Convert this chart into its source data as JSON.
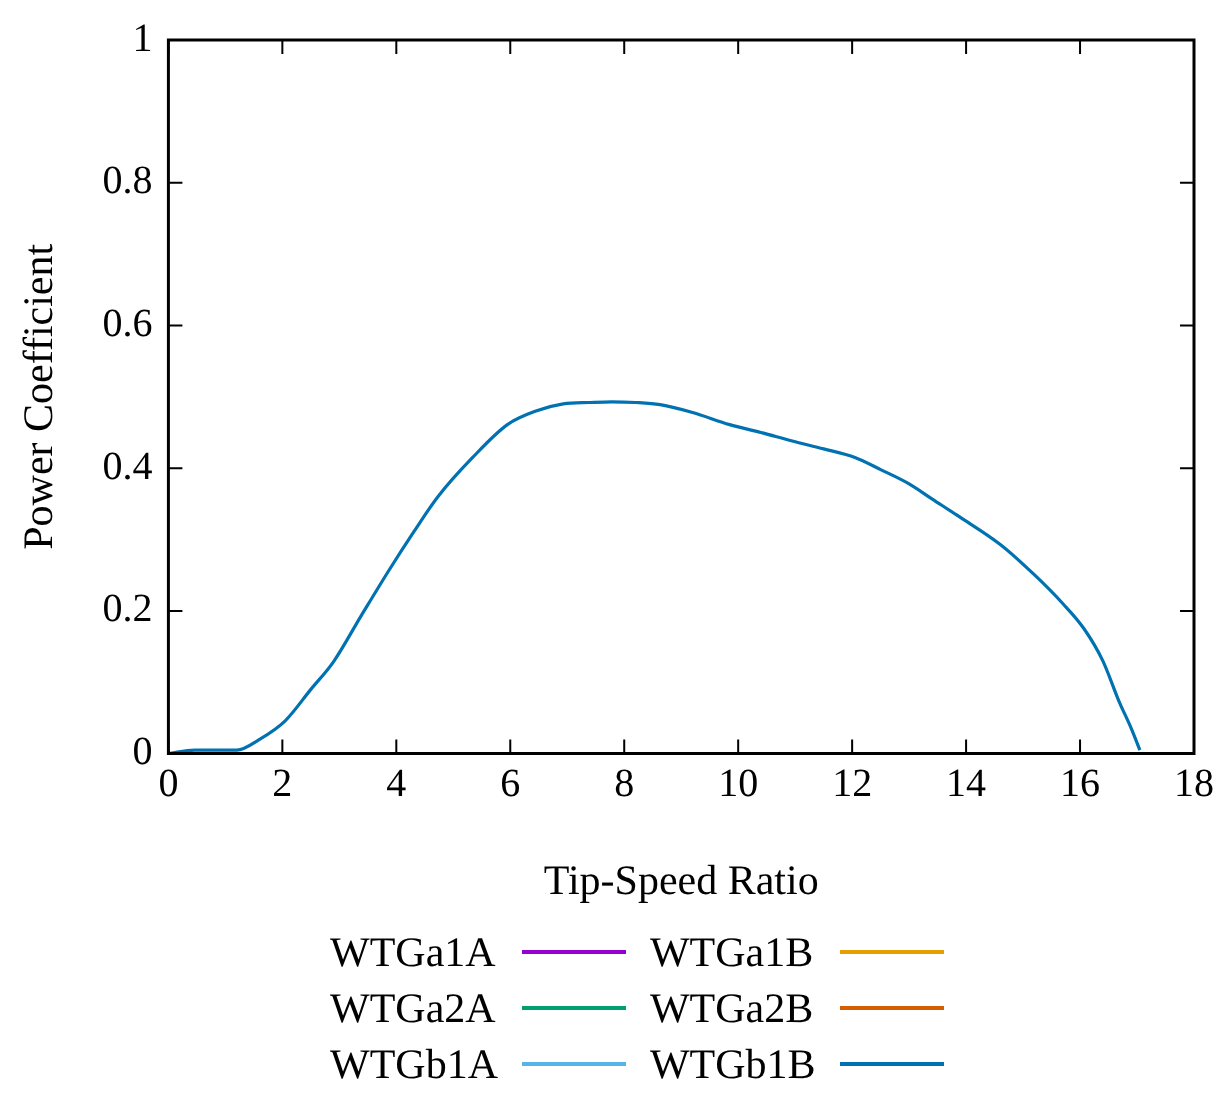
{
  "chart_data": {
    "type": "line",
    "xlabel": "Tip-Speed Ratio",
    "ylabel": "Power Coefficient",
    "x": [
      0,
      0.46,
      1.2,
      1.6,
      2.05,
      2.5,
      2.9,
      3.39,
      3.88,
      4.3,
      4.73,
      5.34,
      5.95,
      6.45,
      6.93,
      7.4,
      7.78,
      8.2,
      8.63,
      9.2,
      9.85,
      10.4,
      10.95,
      11.5,
      12.05,
      12.5,
      13.0,
      13.4,
      13.88,
      14.6,
      15.22,
      15.7,
      16.07,
      16.4,
      16.68,
      16.9,
      17.05
    ],
    "series": [
      {
        "name": "WTGa1A",
        "color": "#9400d3",
        "values": [
          null,
          null,
          null,
          null,
          null,
          null,
          null,
          null,
          null,
          null,
          null,
          null,
          null,
          null,
          null,
          null,
          null,
          null,
          null,
          null,
          null,
          null,
          null,
          null,
          null,
          null,
          null,
          null,
          null,
          null,
          null,
          null,
          null,
          null,
          null,
          null,
          null
        ]
      },
      {
        "name": "WTGa1B",
        "color": "#e69f00",
        "values": [
          null,
          null,
          null,
          null,
          null,
          null,
          null,
          null,
          null,
          null,
          null,
          null,
          null,
          null,
          null,
          null,
          null,
          null,
          null,
          null,
          null,
          null,
          null,
          null,
          null,
          null,
          null,
          null,
          null,
          null,
          null,
          null,
          null,
          null,
          null,
          null,
          null
        ]
      },
      {
        "name": "WTGa2A",
        "color": "#009e73",
        "values": [
          null,
          null,
          null,
          null,
          null,
          null,
          null,
          null,
          null,
          null,
          null,
          null,
          null,
          null,
          null,
          null,
          null,
          null,
          null,
          null,
          null,
          null,
          null,
          null,
          null,
          null,
          null,
          null,
          null,
          null,
          null,
          null,
          null,
          null,
          null,
          null,
          null
        ]
      },
      {
        "name": "WTGa2B",
        "color": "#d55e00",
        "values": [
          null,
          null,
          null,
          null,
          null,
          null,
          null,
          null,
          null,
          null,
          null,
          null,
          null,
          null,
          null,
          null,
          null,
          null,
          null,
          null,
          null,
          null,
          null,
          null,
          null,
          null,
          null,
          null,
          null,
          null,
          null,
          null,
          null,
          null,
          null,
          null,
          null
        ]
      },
      {
        "name": "WTGb1A",
        "color": "#56b4e9",
        "values": [
          null,
          null,
          null,
          null,
          null,
          null,
          null,
          null,
          null,
          null,
          null,
          null,
          null,
          null,
          null,
          null,
          null,
          null,
          null,
          null,
          null,
          null,
          null,
          null,
          null,
          null,
          null,
          null,
          null,
          null,
          null,
          null,
          null,
          null,
          null,
          null,
          null
        ]
      },
      {
        "name": "WTGb1B",
        "color": "#0072b2",
        "values": [
          0,
          0.005,
          0.005,
          0.02,
          0.046,
          0.09,
          0.129,
          0.194,
          0.258,
          0.31,
          0.36,
          0.415,
          0.461,
          0.48,
          0.49,
          0.492,
          0.493,
          0.492,
          0.489,
          0.478,
          0.461,
          0.45,
          0.438,
          0.427,
          0.415,
          0.398,
          0.378,
          0.357,
          0.332,
          0.293,
          0.249,
          0.21,
          0.175,
          0.13,
          0.074,
          0.035,
          0.005
        ]
      }
    ],
    "xlim": [
      0,
      18
    ],
    "xticks": [
      0,
      2,
      4,
      6,
      8,
      10,
      12,
      14,
      16,
      18
    ],
    "ylim": [
      0,
      1
    ],
    "yticks": [
      0,
      0.2,
      0.4,
      0.6,
      0.8,
      1
    ],
    "grid": false,
    "legend": "bottom",
    "marker": "none",
    "line_style": "solid"
  }
}
